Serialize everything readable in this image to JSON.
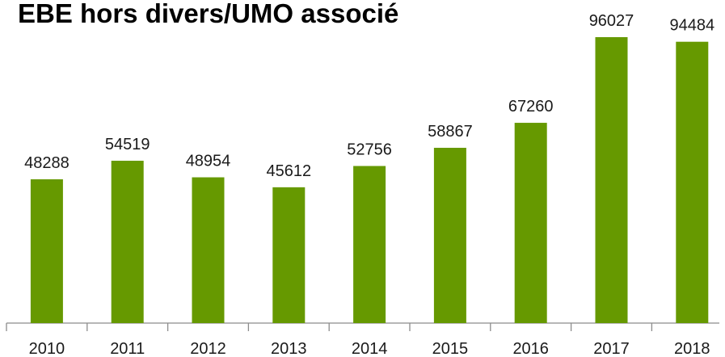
{
  "chart_data": {
    "type": "bar",
    "title": "EBE hors divers/UMO associé",
    "categories": [
      "2010",
      "2011",
      "2012",
      "2013",
      "2014",
      "2015",
      "2016",
      "2017",
      "2018"
    ],
    "values": [
      48288,
      54519,
      48954,
      45612,
      52756,
      58867,
      67260,
      96027,
      94484
    ],
    "color": "#669900"
  }
}
